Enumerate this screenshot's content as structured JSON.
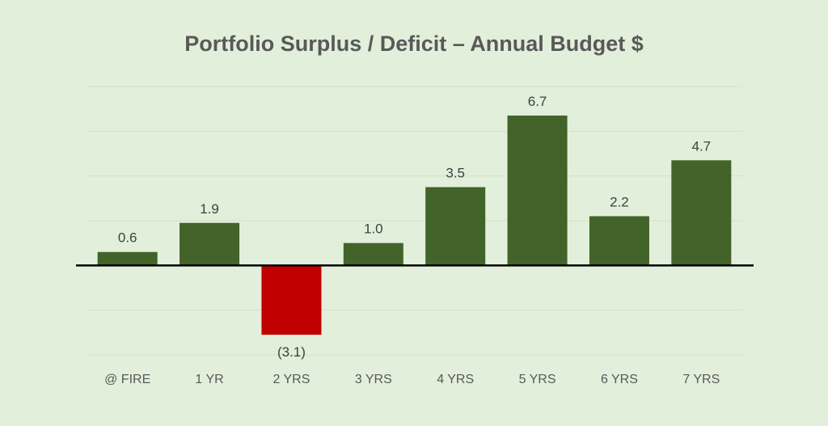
{
  "chart_data": {
    "type": "bar",
    "title": "Portfolio Surplus / Deficit – Annual Budget $",
    "xlabel": "",
    "ylabel": "",
    "categories": [
      "@ FIRE",
      "1 YR",
      "2 YRS",
      "3 YRS",
      "4 YRS",
      "5 YRS",
      "6 YRS",
      "7 YRS"
    ],
    "values": [
      0.6,
      1.9,
      -3.1,
      1.0,
      3.5,
      6.7,
      2.2,
      4.7
    ],
    "data_labels": [
      "0.6",
      "1.9",
      "(3.1)",
      "1.0",
      "3.5",
      "6.7",
      "2.2",
      "4.7"
    ],
    "ylim": [
      -4,
      8
    ],
    "ytick_step": 2,
    "y_tick_labels_visible": false,
    "grid": true,
    "legend": "none",
    "colors": {
      "positive": "#426329",
      "negative": "#c00000",
      "background": "#e2efda",
      "gridline": "#d3e3c8",
      "axis": "#000000"
    }
  }
}
